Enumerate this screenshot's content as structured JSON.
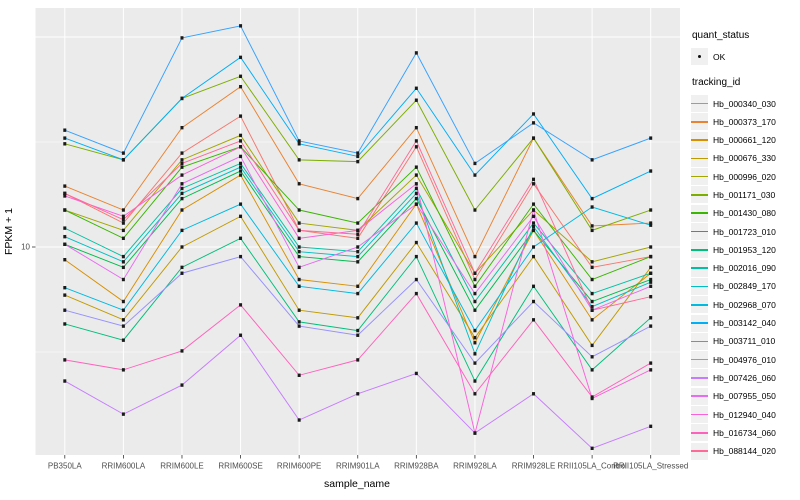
{
  "figure": {
    "bg": "#FFFFFF",
    "panel_bg": "#EBEBEB",
    "grid_color": "#FFFFFF",
    "tick_color": "#333333",
    "tick_text_color": "#4D4D4D",
    "title_color": "#000000",
    "marker_color": "#1A1A1A"
  },
  "axes": {
    "y_tick_label": "10",
    "x_title": "sample_name",
    "y_title": "FPKM + 1"
  },
  "legend": {
    "quant_title": "quant_status",
    "quant_items": [
      {
        "label": "OK",
        "marker": "point"
      }
    ],
    "tracking_title": "tracking_id"
  },
  "chart_data": {
    "type": "line",
    "title": "",
    "xlabel": "sample_name",
    "ylabel": "FPKM + 1",
    "y_scale": "log10",
    "y_ticks": [
      10
    ],
    "y_minor_ticks": [
      3.162,
      31.62
    ],
    "y_major_unlabeled": [
      100
    ],
    "ylim": [
      1.02,
      137
    ],
    "grid": true,
    "legend_position": "right",
    "quant_status": "OK",
    "categories": [
      "PB350LA",
      "RRIM600LA",
      "RRIM600LE",
      "RRIM600SE",
      "RRIM600PE",
      "RRIM901LA",
      "RRIM928BA",
      "RRIM928LA",
      "RRIM928LE",
      "RRII105LA_Control",
      "RRII105LA_Stressed"
    ],
    "series": [
      {
        "name": "Hb_000340_030",
        "color": "#F8766D",
        "values": [
          18,
          13,
          28,
          42,
          12,
          11,
          30,
          7,
          20,
          8,
          9
        ]
      },
      {
        "name": "Hb_000373_170",
        "color": "#EA8331",
        "values": [
          19.5,
          15,
          37,
          58,
          20,
          17,
          37,
          9,
          33,
          12.6,
          13
        ]
      },
      {
        "name": "Hb_000661_120",
        "color": "#D89000",
        "values": [
          8.7,
          5.5,
          15,
          22,
          7,
          6.5,
          16,
          3.5,
          12,
          4.5,
          7.5
        ]
      },
      {
        "name": "Hb_000676_330",
        "color": "#C09B00",
        "values": [
          5.9,
          4.5,
          10,
          14,
          5,
          4.6,
          10.5,
          3.7,
          9,
          3.4,
          8
        ]
      },
      {
        "name": "Hb_000996_020",
        "color": "#A3A500",
        "values": [
          15,
          12,
          26,
          34,
          13,
          12,
          22,
          7.5,
          15,
          8.5,
          10
        ]
      },
      {
        "name": "Hb_001171_030",
        "color": "#7CAE00",
        "values": [
          31,
          26,
          51,
          65,
          26,
          25.5,
          50,
          15,
          33,
          12,
          15
        ]
      },
      {
        "name": "Hb_001430_080",
        "color": "#39B600",
        "values": [
          15,
          11,
          24,
          30,
          15,
          13,
          24,
          6.5,
          16,
          7,
          9
        ]
      },
      {
        "name": "Hb_001723_010",
        "color": "#00BB4E",
        "values": [
          10.3,
          8,
          17,
          23,
          9,
          8.5,
          17,
          5,
          12,
          5.5,
          7
        ]
      },
      {
        "name": "Hb_001953_120",
        "color": "#00BF7D",
        "values": [
          4.3,
          3.6,
          8,
          11,
          4.4,
          4,
          9,
          2.3,
          6.5,
          2.6,
          4.6
        ]
      },
      {
        "name": "Hb_002016_090",
        "color": "#00C1A3",
        "values": [
          12.3,
          9,
          19,
          25,
          10,
          9.5,
          19,
          5.5,
          13,
          6,
          7.5
        ]
      },
      {
        "name": "Hb_002849_170",
        "color": "#00BFC4",
        "values": [
          11.2,
          8.5,
          18,
          24,
          9.5,
          9,
          18,
          3.1,
          12.5,
          5.2,
          6.8
        ]
      },
      {
        "name": "Hb_002968_070",
        "color": "#00BAE0",
        "values": [
          6.4,
          5,
          12,
          16,
          6.5,
          6,
          13,
          4,
          10,
          15.5,
          12.7
        ]
      },
      {
        "name": "Hb_003142_040",
        "color": "#00B0F6",
        "values": [
          33,
          26,
          51,
          80,
          31,
          27,
          57,
          22,
          43,
          17,
          23
        ]
      },
      {
        "name": "Hb_003711_010",
        "color": "#35A2FF",
        "values": [
          36,
          28,
          99,
          113,
          32,
          28,
          84,
          25,
          39,
          26,
          33
        ]
      },
      {
        "name": "Hb_004976_010",
        "color": "#9590FF",
        "values": [
          5,
          4.2,
          7.5,
          9,
          4.2,
          3.8,
          7,
          2.8,
          5.5,
          3,
          4.2
        ]
      },
      {
        "name": "Hb_007426_060",
        "color": "#C77CFF",
        "values": [
          2.3,
          1.6,
          2.2,
          3.8,
          1.5,
          2,
          2.5,
          1.3,
          2,
          1.1,
          1.4
        ]
      },
      {
        "name": "Hb_007955_050",
        "color": "#E76BF3",
        "values": [
          10.3,
          7,
          20,
          27,
          8,
          10,
          16,
          6,
          14,
          5,
          6.5
        ]
      },
      {
        "name": "Hb_012940_040",
        "color": "#FA62DB",
        "values": [
          17.5,
          14,
          22,
          30,
          11,
          12,
          20,
          1.3,
          15,
          1.9,
          2.6
        ]
      },
      {
        "name": "Hb_016734_060",
        "color": "#FF62BC",
        "values": [
          2.9,
          2.6,
          3.2,
          5.3,
          2.45,
          2.9,
          6,
          2,
          4.5,
          1.93,
          2.8
        ]
      },
      {
        "name": "Hb_088144_020",
        "color": "#FF6A98",
        "values": [
          18,
          13.5,
          25,
          32,
          12,
          11.5,
          32,
          7.5,
          21,
          5,
          5.8
        ]
      }
    ]
  }
}
